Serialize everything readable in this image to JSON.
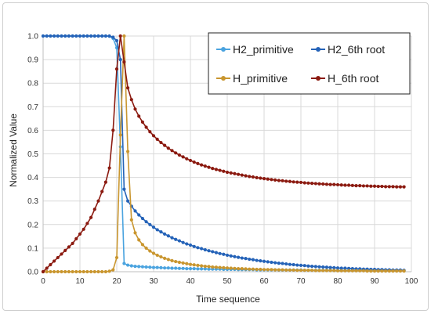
{
  "chart_data": {
    "type": "line",
    "title": "",
    "xlabel": "Time sequence",
    "ylabel": "Normalized Value",
    "xlim": [
      0,
      100
    ],
    "ylim": [
      0,
      1.0
    ],
    "x_ticks": [
      0,
      10,
      20,
      30,
      40,
      50,
      60,
      70,
      80,
      90,
      100
    ],
    "x_tick_labels": [
      "0",
      "10",
      "20",
      "30",
      "40",
      "50",
      "60",
      "70",
      "80",
      "90",
      "100"
    ],
    "y_ticks": [
      0,
      0.1,
      0.2,
      0.3,
      0.4,
      0.5,
      0.6,
      0.7,
      0.8,
      0.9,
      1.0
    ],
    "y_tick_labels": [
      "0.0",
      "0.1",
      "0.2",
      "0.3",
      "0.4",
      "0.5",
      "0.6",
      "0.7",
      "0.8",
      "0.9",
      "1.0"
    ],
    "grid": true,
    "legend_position": "top-right",
    "x": [
      0,
      1,
      2,
      3,
      4,
      5,
      6,
      7,
      8,
      9,
      10,
      11,
      12,
      13,
      14,
      15,
      16,
      17,
      18,
      19,
      20,
      21,
      22,
      23,
      24,
      25,
      26,
      27,
      28,
      29,
      30,
      31,
      32,
      33,
      34,
      35,
      36,
      37,
      38,
      39,
      40,
      41,
      42,
      43,
      44,
      45,
      46,
      47,
      48,
      49,
      50,
      51,
      52,
      53,
      54,
      55,
      56,
      57,
      58,
      59,
      60,
      61,
      62,
      63,
      64,
      65,
      66,
      67,
      68,
      69,
      70,
      71,
      72,
      73,
      74,
      75,
      76,
      77,
      78,
      79,
      80,
      81,
      82,
      83,
      84,
      85,
      86,
      87,
      88,
      89,
      90,
      91,
      92,
      93,
      94,
      95,
      96,
      97,
      98
    ],
    "series": [
      {
        "name": "H2_primitive",
        "color": "#4aa3df",
        "values": [
          1,
          1,
          1,
          1,
          1,
          1,
          1,
          1,
          1,
          1,
          1,
          1,
          1,
          1,
          1,
          1,
          1,
          1,
          0.999,
          0.99,
          0.95,
          0.53,
          0.035,
          0.028,
          0.025,
          0.023,
          0.022,
          0.021,
          0.02,
          0.019,
          0.018,
          0.018,
          0.017,
          0.016,
          0.016,
          0.015,
          0.015,
          0.014,
          0.014,
          0.013,
          0.013,
          0.013,
          0.012,
          0.012,
          0.012,
          0.011,
          0.011,
          0.011,
          0.011,
          0.01,
          0.01,
          0.01,
          0.01,
          0.009,
          0.009,
          0.009,
          0.009,
          0.009,
          0.008,
          0.008,
          0.008,
          0.008,
          0.008,
          0.008,
          0.007,
          0.007,
          0.007,
          0.007,
          0.007,
          0.007,
          0.007,
          0.006,
          0.006,
          0.006,
          0.006,
          0.006,
          0.006,
          0.006,
          0.006,
          0.005,
          0.005,
          0.005,
          0.005,
          0.005,
          0.005,
          0.005,
          0.005,
          0.005,
          0.004,
          0.004,
          0.004,
          0.004,
          0.004,
          0.004,
          0.004,
          0.004,
          0.004,
          0.004,
          0.004
        ]
      },
      {
        "name": "H2_6th root",
        "color": "#2563b8",
        "values": [
          1,
          1,
          1,
          1,
          1,
          1,
          1,
          1,
          1,
          1,
          1,
          1,
          1,
          1,
          1,
          1,
          1,
          1,
          1,
          0.995,
          0.98,
          0.9,
          0.35,
          0.3,
          0.278,
          0.258,
          0.241,
          0.226,
          0.212,
          0.2,
          0.189,
          0.178,
          0.169,
          0.16,
          0.152,
          0.144,
          0.137,
          0.131,
          0.124,
          0.118,
          0.113,
          0.107,
          0.102,
          0.098,
          0.093,
          0.089,
          0.085,
          0.081,
          0.077,
          0.074,
          0.07,
          0.067,
          0.064,
          0.061,
          0.058,
          0.056,
          0.053,
          0.051,
          0.048,
          0.046,
          0.044,
          0.042,
          0.04,
          0.038,
          0.036,
          0.035,
          0.033,
          0.031,
          0.03,
          0.028,
          0.027,
          0.026,
          0.024,
          0.023,
          0.022,
          0.021,
          0.02,
          0.019,
          0.018,
          0.017,
          0.016,
          0.015,
          0.015,
          0.014,
          0.013,
          0.012,
          0.012,
          0.011,
          0.011,
          0.01,
          0.01,
          0.009,
          0.009,
          0.008,
          0.008,
          0.007,
          0.007,
          0.007,
          0.006
        ]
      },
      {
        "name": "H_primitive",
        "color": "#c9962f",
        "values": [
          0,
          0,
          0,
          0,
          0,
          0,
          0,
          0,
          0,
          0,
          0,
          0,
          0,
          0,
          0,
          0,
          0,
          0,
          0.002,
          0.008,
          0.06,
          0.58,
          1.0,
          0.51,
          0.22,
          0.165,
          0.135,
          0.115,
          0.1,
          0.088,
          0.078,
          0.07,
          0.063,
          0.057,
          0.052,
          0.047,
          0.043,
          0.04,
          0.037,
          0.034,
          0.031,
          0.029,
          0.027,
          0.025,
          0.023,
          0.022,
          0.02,
          0.019,
          0.018,
          0.017,
          0.016,
          0.015,
          0.014,
          0.013,
          0.013,
          0.012,
          0.011,
          0.011,
          0.01,
          0.01,
          0.009,
          0.009,
          0.009,
          0.008,
          0.008,
          0.008,
          0.007,
          0.007,
          0.007,
          0.006,
          0.006,
          0.006,
          0.006,
          0.006,
          0.005,
          0.005,
          0.005,
          0.005,
          0.005,
          0.005,
          0.004,
          0.004,
          0.004,
          0.004,
          0.004,
          0.004,
          0.004,
          0.004,
          0.003,
          0.003,
          0.003,
          0.003,
          0.003,
          0.003,
          0.003,
          0.003,
          0.003,
          0.003,
          0.003
        ]
      },
      {
        "name": "H_6th root",
        "color": "#8b1a10",
        "values": [
          0,
          0.015,
          0.03,
          0.045,
          0.06,
          0.075,
          0.09,
          0.105,
          0.12,
          0.14,
          0.16,
          0.18,
          0.205,
          0.23,
          0.265,
          0.3,
          0.34,
          0.38,
          0.44,
          0.6,
          0.86,
          1.0,
          0.89,
          0.78,
          0.73,
          0.69,
          0.66,
          0.635,
          0.613,
          0.594,
          0.577,
          0.562,
          0.548,
          0.536,
          0.524,
          0.514,
          0.504,
          0.495,
          0.487,
          0.479,
          0.472,
          0.465,
          0.459,
          0.453,
          0.448,
          0.443,
          0.438,
          0.434,
          0.43,
          0.426,
          0.422,
          0.419,
          0.416,
          0.413,
          0.41,
          0.407,
          0.404,
          0.402,
          0.399,
          0.397,
          0.395,
          0.393,
          0.391,
          0.389,
          0.387,
          0.386,
          0.384,
          0.383,
          0.381,
          0.38,
          0.379,
          0.377,
          0.376,
          0.375,
          0.374,
          0.373,
          0.372,
          0.371,
          0.37,
          0.37,
          0.369,
          0.368,
          0.367,
          0.367,
          0.366,
          0.365,
          0.365,
          0.364,
          0.364,
          0.363,
          0.363,
          0.362,
          0.362,
          0.361,
          0.361,
          0.361,
          0.36,
          0.36,
          0.36
        ]
      }
    ]
  }
}
